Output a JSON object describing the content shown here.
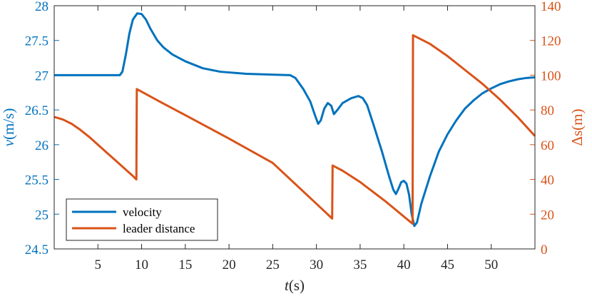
{
  "chart_data": {
    "type": "line",
    "title": "",
    "xlabel": {
      "var": "t",
      "unit": "(s)"
    },
    "ylabel_left": {
      "var": "v",
      "unit": "(m/s)"
    },
    "ylabel_right": {
      "var": "Δs",
      "unit": "(m)"
    },
    "xlim": [
      0,
      55
    ],
    "ylim_left": [
      24.5,
      28
    ],
    "ylim_right": [
      0,
      140
    ],
    "xticks": [
      5,
      10,
      15,
      20,
      25,
      30,
      35,
      40,
      45,
      50
    ],
    "yticks_left": [
      24.5,
      25,
      25.5,
      26,
      26.5,
      27,
      27.5,
      28
    ],
    "yticks_right": [
      0,
      20,
      40,
      60,
      80,
      100,
      120,
      140
    ],
    "grid": false,
    "legend_position": "bottom-left",
    "colors": {
      "velocity": "#0072BD",
      "distance": "#D95319"
    },
    "series": [
      {
        "name": "velocity",
        "axis": "left",
        "points": [
          [
            0,
            27.0
          ],
          [
            7.5,
            27.0
          ],
          [
            7.8,
            27.05
          ],
          [
            8.2,
            27.3
          ],
          [
            8.6,
            27.6
          ],
          [
            9.0,
            27.8
          ],
          [
            9.5,
            27.89
          ],
          [
            10.0,
            27.88
          ],
          [
            10.5,
            27.8
          ],
          [
            11.0,
            27.67
          ],
          [
            11.8,
            27.5
          ],
          [
            12.5,
            27.4
          ],
          [
            13.5,
            27.3
          ],
          [
            15.0,
            27.2
          ],
          [
            17.0,
            27.1
          ],
          [
            19.0,
            27.05
          ],
          [
            22.0,
            27.02
          ],
          [
            27.0,
            27.0
          ],
          [
            27.6,
            26.96
          ],
          [
            28.5,
            26.8
          ],
          [
            29.3,
            26.62
          ],
          [
            29.9,
            26.4
          ],
          [
            30.2,
            26.3
          ],
          [
            30.5,
            26.35
          ],
          [
            30.9,
            26.52
          ],
          [
            31.3,
            26.6
          ],
          [
            31.7,
            26.56
          ],
          [
            32.0,
            26.44
          ],
          [
            32.4,
            26.5
          ],
          [
            33.0,
            26.6
          ],
          [
            34.0,
            26.67
          ],
          [
            34.8,
            26.7
          ],
          [
            35.3,
            26.67
          ],
          [
            35.8,
            26.57
          ],
          [
            36.5,
            26.3
          ],
          [
            37.5,
            25.9
          ],
          [
            38.3,
            25.55
          ],
          [
            38.8,
            25.35
          ],
          [
            39.1,
            25.29
          ],
          [
            39.4,
            25.37
          ],
          [
            39.7,
            25.46
          ],
          [
            40.0,
            25.48
          ],
          [
            40.3,
            25.44
          ],
          [
            40.6,
            25.28
          ],
          [
            40.9,
            25.0
          ],
          [
            41.2,
            24.83
          ],
          [
            41.5,
            24.88
          ],
          [
            42.0,
            25.15
          ],
          [
            43.0,
            25.55
          ],
          [
            44.0,
            25.9
          ],
          [
            45.0,
            26.15
          ],
          [
            46.0,
            26.35
          ],
          [
            47.0,
            26.52
          ],
          [
            48.0,
            26.64
          ],
          [
            49.0,
            26.74
          ],
          [
            50.0,
            26.81
          ],
          [
            51.0,
            26.87
          ],
          [
            52.0,
            26.91
          ],
          [
            53.0,
            26.94
          ],
          [
            54.0,
            26.96
          ],
          [
            55.0,
            26.97
          ]
        ]
      },
      {
        "name": "leader distance",
        "axis": "right",
        "points": [
          [
            0,
            76
          ],
          [
            1,
            74.5
          ],
          [
            2,
            72
          ],
          [
            3,
            68.5
          ],
          [
            4,
            64.5
          ],
          [
            5,
            60
          ],
          [
            6,
            55.5
          ],
          [
            7,
            51
          ],
          [
            8,
            46.5
          ],
          [
            9,
            42
          ],
          [
            9.4,
            40
          ],
          [
            9.45,
            92
          ],
          [
            12,
            85
          ],
          [
            15,
            77
          ],
          [
            20,
            63.5
          ],
          [
            25,
            49.5
          ],
          [
            30,
            26
          ],
          [
            31.8,
            17.5
          ],
          [
            31.85,
            48
          ],
          [
            33,
            45
          ],
          [
            35,
            38.5
          ],
          [
            38,
            27
          ],
          [
            41,
            14.5
          ],
          [
            41.05,
            123
          ],
          [
            43,
            118
          ],
          [
            45,
            111
          ],
          [
            47,
            103
          ],
          [
            49,
            95
          ],
          [
            51,
            86
          ],
          [
            53,
            76
          ],
          [
            55,
            65
          ]
        ]
      }
    ]
  }
}
